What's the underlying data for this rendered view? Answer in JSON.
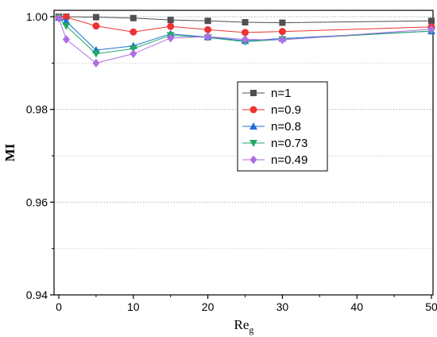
{
  "chart_data": {
    "type": "line",
    "xlabel": "Re",
    "xlabel_sub": "g",
    "ylabel": "MI",
    "xlim": [
      0,
      50
    ],
    "ylim": [
      0.94,
      1.0
    ],
    "xticks": [
      0,
      10,
      20,
      30,
      40,
      50
    ],
    "yticks": [
      0.94,
      0.96,
      0.98,
      1.0
    ],
    "ytick_labels": [
      "0.94",
      "0.96",
      "0.98",
      "1.00"
    ],
    "grid": "horizontal dotted",
    "legend_position": "center-right",
    "x": [
      0,
      1,
      5,
      10,
      15,
      20,
      25,
      30,
      50
    ],
    "series": [
      {
        "name": "n=1",
        "marker": "square",
        "color": "#505050",
        "values": [
          1.0,
          1.0,
          0.9999,
          0.9997,
          0.9993,
          0.9991,
          0.9988,
          0.9987,
          0.9991
        ]
      },
      {
        "name": "n=0.9",
        "marker": "circle",
        "color": "#ee3333",
        "values": [
          0.9999,
          0.9999,
          0.998,
          0.9967,
          0.9979,
          0.9972,
          0.9966,
          0.9968,
          0.9978
        ]
      },
      {
        "name": "n=0.8",
        "marker": "triangle-up",
        "color": "#1f6fd8",
        "values": [
          0.9998,
          0.999,
          0.9928,
          0.9937,
          0.9963,
          0.9956,
          0.9948,
          0.9953,
          0.9969
        ]
      },
      {
        "name": "n=0.73",
        "marker": "triangle-down",
        "color": "#22aa66",
        "values": [
          0.9998,
          0.998,
          0.992,
          0.9931,
          0.996,
          0.9955,
          0.9946,
          0.9951,
          0.9969
        ]
      },
      {
        "name": "n=0.49",
        "marker": "diamond",
        "color": "#b06ee0",
        "values": [
          0.9997,
          0.9951,
          0.99,
          0.992,
          0.9954,
          0.9957,
          0.9951,
          0.995,
          0.9973
        ]
      }
    ]
  }
}
